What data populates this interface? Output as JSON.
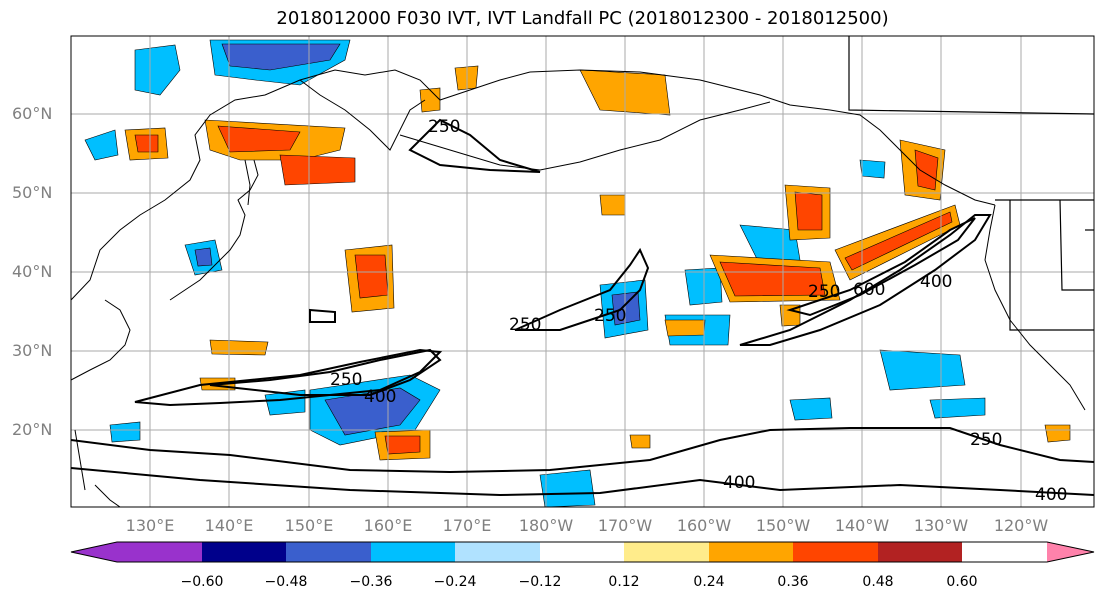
{
  "title": "2018012000 F030 IVT, IVT Landfall PC (2018012300 - 2018012500)",
  "lat_labels": [
    "60°N",
    "50°N",
    "40°N",
    "30°N",
    "20°N"
  ],
  "lon_labels": [
    "130°E",
    "140°E",
    "150°E",
    "160°E",
    "170°E",
    "180°W",
    "170°W",
    "160°W",
    "150°W",
    "140°W",
    "130°W",
    "120°W"
  ],
  "colorbar": {
    "ticks": [
      "−0.60",
      "−0.48",
      "−0.36",
      "−0.24",
      "−0.12",
      "0.12",
      "0.24",
      "0.36",
      "0.48",
      "0.60"
    ],
    "colors": [
      "#9932cc",
      "#00008b",
      "#3a5fcd",
      "#00bfff",
      "#b0e2ff",
      "#ffffff",
      "#ffec8b",
      "#ffa500",
      "#ff4500",
      "#b22222",
      "#ff82ab"
    ]
  },
  "contour_labels": [
    "250",
    "250",
    "250",
    "250",
    "250",
    "400",
    "400",
    "400",
    "600",
    "250",
    "400"
  ]
}
